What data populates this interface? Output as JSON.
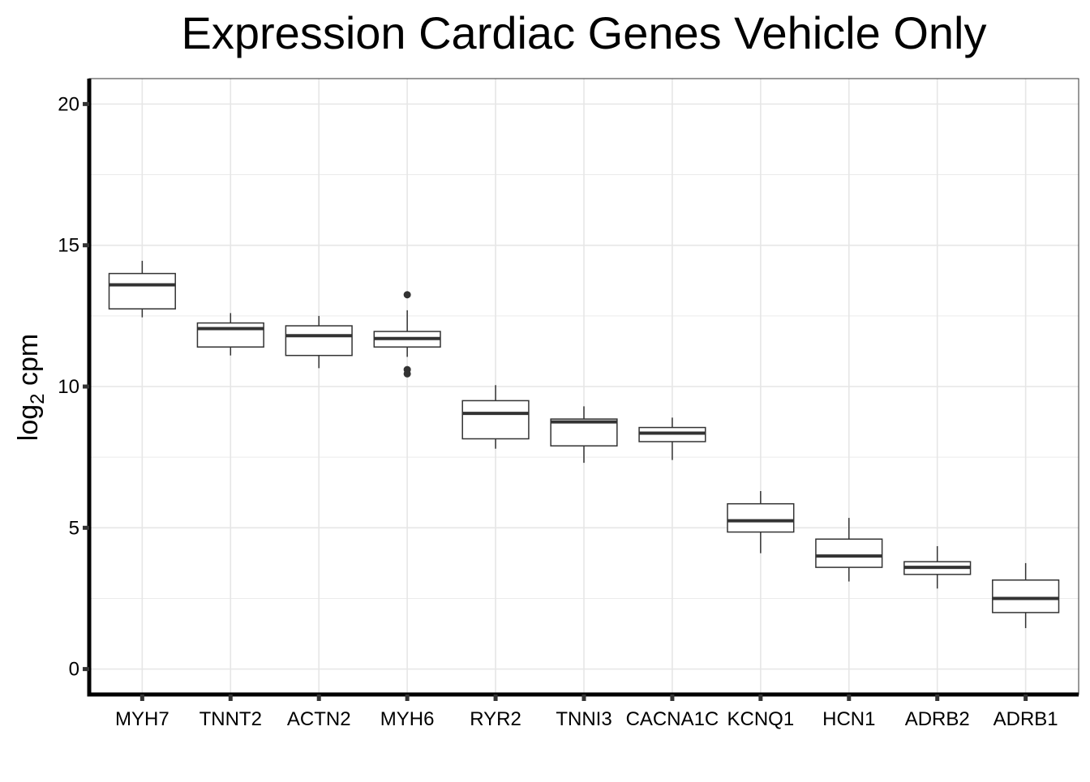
{
  "chart_data": {
    "type": "box",
    "title": "Expression Cardiac Genes Vehicle Only",
    "xlabel": "",
    "ylabel_main": "log",
    "ylabel_sub": "2",
    "ylabel_rest": " cpm",
    "ylim": [
      -0.9,
      20.9
    ],
    "yticks": [
      0,
      5,
      10,
      15,
      20
    ],
    "grid": true,
    "legend": "none",
    "categories": [
      "MYH7",
      "TNNT2",
      "ACTN2",
      "MYH6",
      "RYR2",
      "TNNI3",
      "CACNA1C",
      "KCNQ1",
      "HCN1",
      "ADRB2",
      "ADRB1"
    ],
    "boxes": [
      {
        "label": "MYH7",
        "min": 12.45,
        "q1": 12.75,
        "median": 13.6,
        "q3": 14.0,
        "max": 14.45,
        "outliers": []
      },
      {
        "label": "TNNT2",
        "min": 11.1,
        "q1": 11.4,
        "median": 12.05,
        "q3": 12.25,
        "max": 12.6,
        "outliers": []
      },
      {
        "label": "ACTN2",
        "min": 10.65,
        "q1": 11.1,
        "median": 11.8,
        "q3": 12.15,
        "max": 12.5,
        "outliers": []
      },
      {
        "label": "MYH6",
        "min": 11.05,
        "q1": 11.4,
        "median": 11.7,
        "q3": 11.95,
        "max": 12.7,
        "outliers": [
          13.25,
          10.6,
          10.45
        ]
      },
      {
        "label": "RYR2",
        "min": 7.8,
        "q1": 8.15,
        "median": 9.05,
        "q3": 9.5,
        "max": 10.05,
        "outliers": []
      },
      {
        "label": "TNNI3",
        "min": 7.3,
        "q1": 7.9,
        "median": 8.75,
        "q3": 8.85,
        "max": 9.3,
        "outliers": []
      },
      {
        "label": "CACNA1C",
        "min": 7.4,
        "q1": 8.05,
        "median": 8.35,
        "q3": 8.55,
        "max": 8.9,
        "outliers": []
      },
      {
        "label": "KCNQ1",
        "min": 4.1,
        "q1": 4.85,
        "median": 5.25,
        "q3": 5.85,
        "max": 6.3,
        "outliers": []
      },
      {
        "label": "HCN1",
        "min": 3.1,
        "q1": 3.6,
        "median": 4.0,
        "q3": 4.6,
        "max": 5.35,
        "outliers": []
      },
      {
        "label": "ADRB2",
        "min": 2.85,
        "q1": 3.35,
        "median": 3.6,
        "q3": 3.8,
        "max": 4.35,
        "outliers": []
      },
      {
        "label": "ADRB1",
        "min": 1.45,
        "q1": 2.0,
        "median": 2.5,
        "q3": 3.15,
        "max": 3.75,
        "outliers": []
      }
    ]
  }
}
